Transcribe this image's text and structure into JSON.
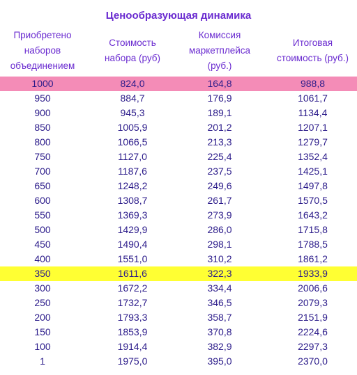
{
  "title": "Ценообразующая динамика",
  "headers": [
    [
      "Приобретено",
      "наборов",
      "объединением"
    ],
    [
      "Стоимость",
      "набора (руб)"
    ],
    [
      "Комиссия",
      "маркетплейса",
      "(руб.)"
    ],
    [
      "Итоговая",
      "стоимость (руб.)"
    ]
  ],
  "rows": [
    {
      "qty": "1000",
      "price": "824,0",
      "fee": "164,8",
      "total": "988,8",
      "highlight": "pink"
    },
    {
      "qty": "950",
      "price": "884,7",
      "fee": "176,9",
      "total": "1061,7",
      "highlight": ""
    },
    {
      "qty": "900",
      "price": "945,3",
      "fee": "189,1",
      "total": "1134,4",
      "highlight": ""
    },
    {
      "qty": "850",
      "price": "1005,9",
      "fee": "201,2",
      "total": "1207,1",
      "highlight": ""
    },
    {
      "qty": "800",
      "price": "1066,5",
      "fee": "213,3",
      "total": "1279,7",
      "highlight": ""
    },
    {
      "qty": "750",
      "price": "1127,0",
      "fee": "225,4",
      "total": "1352,4",
      "highlight": ""
    },
    {
      "qty": "700",
      "price": "1187,6",
      "fee": "237,5",
      "total": "1425,1",
      "highlight": ""
    },
    {
      "qty": "650",
      "price": "1248,2",
      "fee": "249,6",
      "total": "1497,8",
      "highlight": ""
    },
    {
      "qty": "600",
      "price": "1308,7",
      "fee": "261,7",
      "total": "1570,5",
      "highlight": ""
    },
    {
      "qty": "550",
      "price": "1369,3",
      "fee": "273,9",
      "total": "1643,2",
      "highlight": ""
    },
    {
      "qty": "500",
      "price": "1429,9",
      "fee": "286,0",
      "total": "1715,8",
      "highlight": ""
    },
    {
      "qty": "450",
      "price": "1490,4",
      "fee": "298,1",
      "total": "1788,5",
      "highlight": ""
    },
    {
      "qty": "400",
      "price": "1551,0",
      "fee": "310,2",
      "total": "1861,2",
      "highlight": ""
    },
    {
      "qty": "350",
      "price": "1611,6",
      "fee": "322,3",
      "total": "1933,9",
      "highlight": "yellow"
    },
    {
      "qty": "300",
      "price": "1672,2",
      "fee": "334,4",
      "total": "2006,6",
      "highlight": ""
    },
    {
      "qty": "250",
      "price": "1732,7",
      "fee": "346,5",
      "total": "2079,3",
      "highlight": ""
    },
    {
      "qty": "200",
      "price": "1793,3",
      "fee": "358,7",
      "total": "2151,9",
      "highlight": ""
    },
    {
      "qty": "150",
      "price": "1853,9",
      "fee": "370,8",
      "total": "2224,6",
      "highlight": ""
    },
    {
      "qty": "100",
      "price": "1914,4",
      "fee": "382,9",
      "total": "2297,3",
      "highlight": ""
    },
    {
      "qty": "1",
      "price": "1975,0",
      "fee": "395,0",
      "total": "2370,0",
      "highlight": ""
    }
  ],
  "colors": {
    "header_text": "#6a2bd0",
    "cell_text": "#2b1b8a",
    "highlight_pink": "#f48cb7",
    "highlight_yellow": "#ffff33"
  }
}
